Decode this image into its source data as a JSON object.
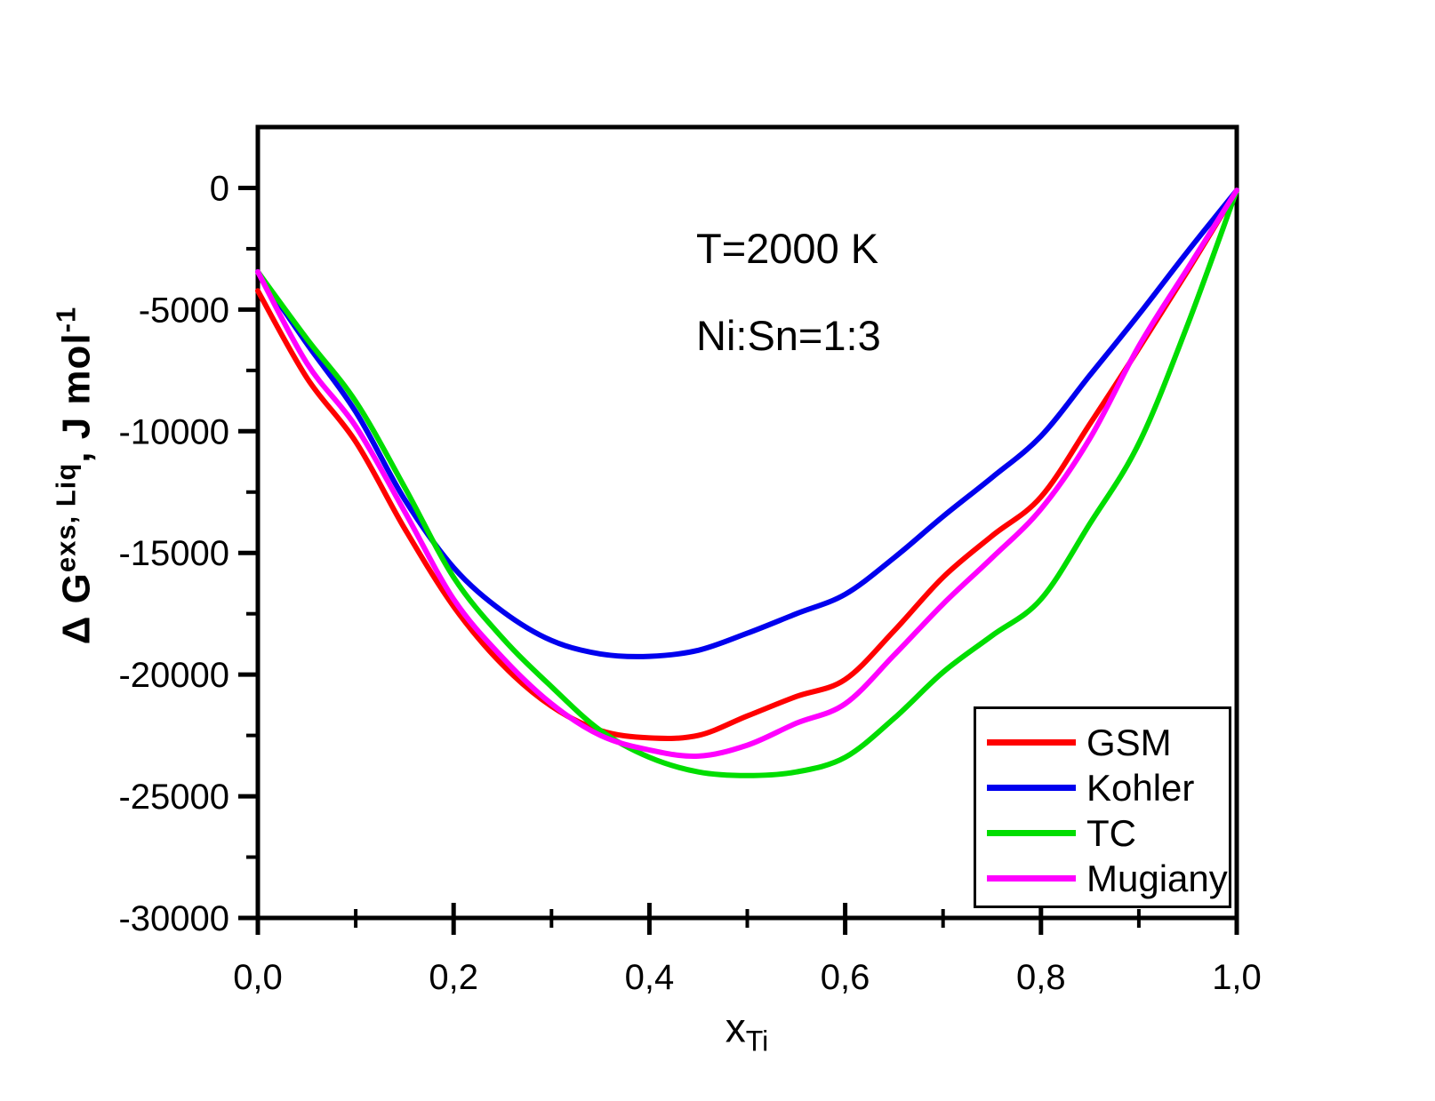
{
  "annotations": {
    "temperature": "T=2000 K",
    "ratio": "Ni:Sn=1:3"
  },
  "y_label": {
    "part1": "Δ G",
    "sup1": "exs, Liq",
    "part2": ", J mol",
    "sup2": "-1"
  },
  "x_label": {
    "base": "x",
    "sub": "Ti"
  },
  "legend": {
    "position": "bottom-right",
    "entries": [
      "GSM",
      "Kohler",
      "TC",
      "Mugiany"
    ]
  },
  "colors": {
    "GSM": "#ff0000",
    "Kohler": "#0000ee",
    "TC": "#00dd00",
    "Mugiany": "#ff00ff",
    "axis": "#000000"
  },
  "chart_data": {
    "type": "line",
    "title": "",
    "xlabel": "x_Ti",
    "ylabel": "ΔG^(exs, Liq), J mol^(-1)",
    "annotations": [
      "T=2000 K",
      "Ni:Sn=1:3"
    ],
    "xlim": [
      0,
      1
    ],
    "ylim": [
      -30000,
      2500
    ],
    "grid": false,
    "legend_position": "bottom-right",
    "x_ticks": [
      {
        "v": 0.0,
        "label": "0,0"
      },
      {
        "v": 0.2,
        "label": "0,2"
      },
      {
        "v": 0.4,
        "label": "0,4"
      },
      {
        "v": 0.6,
        "label": "0,6"
      },
      {
        "v": 0.8,
        "label": "0,8"
      },
      {
        "v": 1.0,
        "label": "1,0"
      }
    ],
    "x_minor_ticks": [
      0.1,
      0.3,
      0.5,
      0.7,
      0.9
    ],
    "y_ticks": [
      {
        "v": 0,
        "label": "0"
      },
      {
        "v": -5000,
        "label": "-5000"
      },
      {
        "v": -10000,
        "label": "-10000"
      },
      {
        "v": -15000,
        "label": "-15000"
      },
      {
        "v": -20000,
        "label": "-20000"
      },
      {
        "v": -25000,
        "label": "-25000"
      },
      {
        "v": -30000,
        "label": "-30000"
      }
    ],
    "y_minor_ticks": [
      -2500,
      -7500,
      -12500,
      -17500,
      -22500,
      -27500
    ],
    "x": [
      0,
      0.05,
      0.1,
      0.15,
      0.2,
      0.25,
      0.3,
      0.35,
      0.4,
      0.45,
      0.5,
      0.55,
      0.6,
      0.65,
      0.7,
      0.75,
      0.8,
      0.85,
      0.9,
      0.95,
      1.0
    ],
    "series": [
      {
        "name": "GSM",
        "color": "#ff0000",
        "values": [
          -4230,
          -7800,
          -10430,
          -14000,
          -17200,
          -19600,
          -21300,
          -22300,
          -22600,
          -22500,
          -21700,
          -20900,
          -20200,
          -18200,
          -16000,
          -14300,
          -12700,
          -9700,
          -6600,
          -3400,
          -100
        ]
      },
      {
        "name": "Kohler",
        "color": "#0000ee",
        "values": [
          -3450,
          -6400,
          -9200,
          -12800,
          -15600,
          -17400,
          -18600,
          -19150,
          -19250,
          -19000,
          -18300,
          -17500,
          -16700,
          -15200,
          -13500,
          -11900,
          -10200,
          -7700,
          -5200,
          -2600,
          -100
        ]
      },
      {
        "name": "TC",
        "color": "#00dd00",
        "values": [
          -3450,
          -6200,
          -8780,
          -12300,
          -16000,
          -18500,
          -20500,
          -22300,
          -23400,
          -24000,
          -24150,
          -24000,
          -23400,
          -21800,
          -19900,
          -18400,
          -16900,
          -13800,
          -10500,
          -5600,
          -100
        ]
      },
      {
        "name": "Mugiany",
        "color": "#ff00ff",
        "values": [
          -3450,
          -7200,
          -9800,
          -13300,
          -16900,
          -19300,
          -21200,
          -22500,
          -23100,
          -23350,
          -22900,
          -22000,
          -21200,
          -19200,
          -17100,
          -15200,
          -13200,
          -10300,
          -6500,
          -3300,
          -100
        ]
      }
    ]
  }
}
